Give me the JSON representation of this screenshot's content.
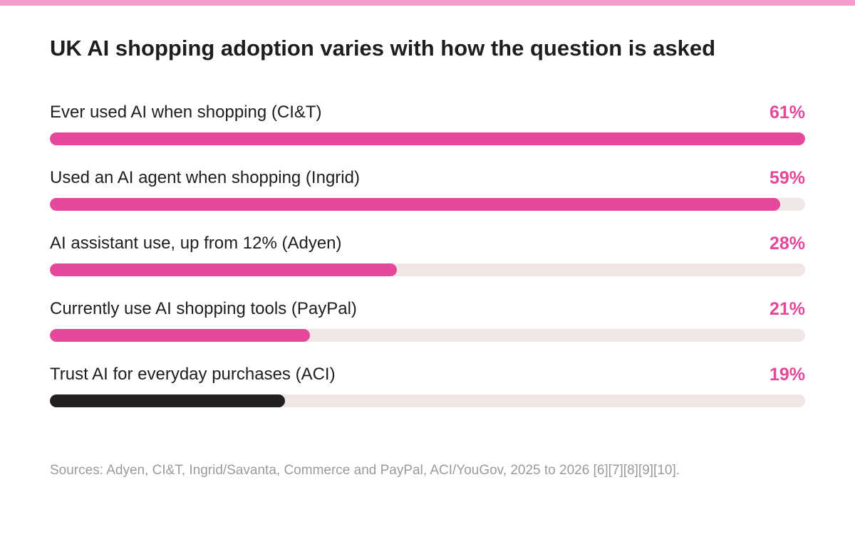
{
  "chart_data": {
    "type": "bar",
    "orientation": "horizontal",
    "title": "UK AI shopping adoption varies with how the question is asked",
    "categories": [
      "Ever used AI when shopping (CI&T)",
      "Used an AI agent when shopping (Ingrid)",
      "AI assistant use, up from 12% (Adyen)",
      "Currently use AI shopping tools (PayPal)",
      "Trust AI for everyday purchases (ACI)"
    ],
    "values": [
      61,
      59,
      28,
      21,
      19
    ],
    "value_labels": [
      "61%",
      "59%",
      "28%",
      "21%",
      "19%"
    ],
    "xlim": [
      0,
      61
    ],
    "bar_colors": [
      "#e5489a",
      "#e5489a",
      "#e5489a",
      "#e5489a",
      "#231f20"
    ],
    "track_color": "#f0e6e3",
    "value_label_color": "#e5489a",
    "legend": "none",
    "grid": false
  },
  "sources": "Sources: Adyen, CI&T, Ingrid/Savanta, Commerce and PayPal, ACI/YouGov, 2025 to 2026 [6][7][8][9][10].",
  "colors": {
    "accent": "#e5489a",
    "top_strip": "#f59bc9",
    "dark_bar": "#231f20",
    "track": "#f0e6e3",
    "muted_text": "#9a9a9a"
  }
}
